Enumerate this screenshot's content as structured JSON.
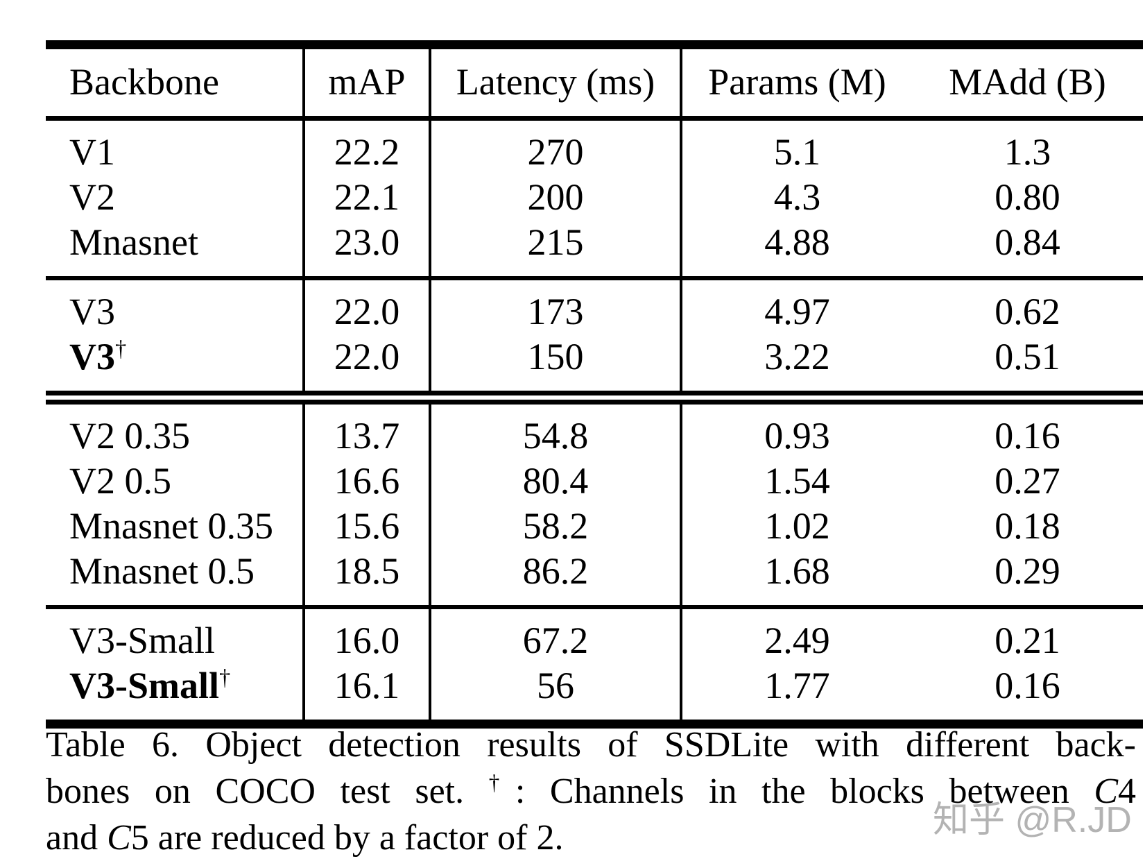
{
  "table": {
    "columns": [
      "Backbone",
      "mAP",
      "Latency (ms)",
      "Params (M)",
      "MAdd (B)"
    ],
    "groups": [
      {
        "rows": [
          {
            "name": [
              {
                "t": "V1"
              }
            ],
            "values": [
              "22.2",
              "270",
              "5.1",
              "1.3"
            ]
          },
          {
            "name": [
              {
                "t": "V2"
              }
            ],
            "values": [
              "22.1",
              "200",
              "4.3",
              "0.80"
            ]
          },
          {
            "name": [
              {
                "t": "Mnasnet"
              }
            ],
            "values": [
              "23.0",
              "215",
              "4.88",
              "0.84"
            ]
          }
        ],
        "rule_after": "solid"
      },
      {
        "rows": [
          {
            "name": [
              {
                "t": "V3"
              }
            ],
            "values": [
              "22.0",
              "173",
              "4.97",
              "0.62"
            ]
          },
          {
            "name": [
              {
                "t": "V3",
                "b": true
              },
              {
                "t": "†",
                "sup": true
              }
            ],
            "values": [
              "22.0",
              "150",
              "3.22",
              "0.51"
            ]
          }
        ],
        "rule_after": "double"
      },
      {
        "rows": [
          {
            "name": [
              {
                "t": "V2 0.35"
              }
            ],
            "values": [
              "13.7",
              "54.8",
              "0.93",
              "0.16"
            ]
          },
          {
            "name": [
              {
                "t": "V2 0.5"
              }
            ],
            "values": [
              "16.6",
              "80.4",
              "1.54",
              "0.27"
            ]
          },
          {
            "name": [
              {
                "t": "Mnasnet 0.35"
              }
            ],
            "values": [
              "15.6",
              "58.2",
              "1.02",
              "0.18"
            ]
          },
          {
            "name": [
              {
                "t": "Mnasnet 0.5"
              }
            ],
            "values": [
              "18.5",
              "86.2",
              "1.68",
              "0.29"
            ]
          }
        ],
        "rule_after": "solid"
      },
      {
        "rows": [
          {
            "name": [
              {
                "t": "V3-Small"
              }
            ],
            "values": [
              "16.0",
              "67.2",
              "2.49",
              "0.21"
            ]
          },
          {
            "name": [
              {
                "t": "V3-Small",
                "b": true
              },
              {
                "t": "†",
                "sup": true
              }
            ],
            "values": [
              "16.1",
              "56",
              "1.77",
              "0.16"
            ]
          }
        ],
        "rule_after": "none"
      }
    ]
  },
  "caption": {
    "lines": [
      {
        "segments": [
          {
            "t": "Table 6. Object detection results of SSDLite with different back-"
          }
        ],
        "justify": true
      },
      {
        "segments": [
          {
            "t": "bones on COCO test set. "
          },
          {
            "t": "†",
            "sup": true
          },
          {
            "t": ": Channels in the blocks between "
          },
          {
            "t": "C",
            "i": true
          },
          {
            "t": "4"
          }
        ],
        "justify": true
      },
      {
        "segments": [
          {
            "t": "and "
          },
          {
            "t": "C",
            "i": true
          },
          {
            "t": "5 are reduced by a factor of 2."
          }
        ],
        "justify": false
      }
    ]
  },
  "watermark": {
    "text": "知乎 @R.JD",
    "color": "#b3b3b3"
  },
  "colors": {
    "text": "#000000",
    "background": "#ffffff",
    "rule": "#000000"
  }
}
